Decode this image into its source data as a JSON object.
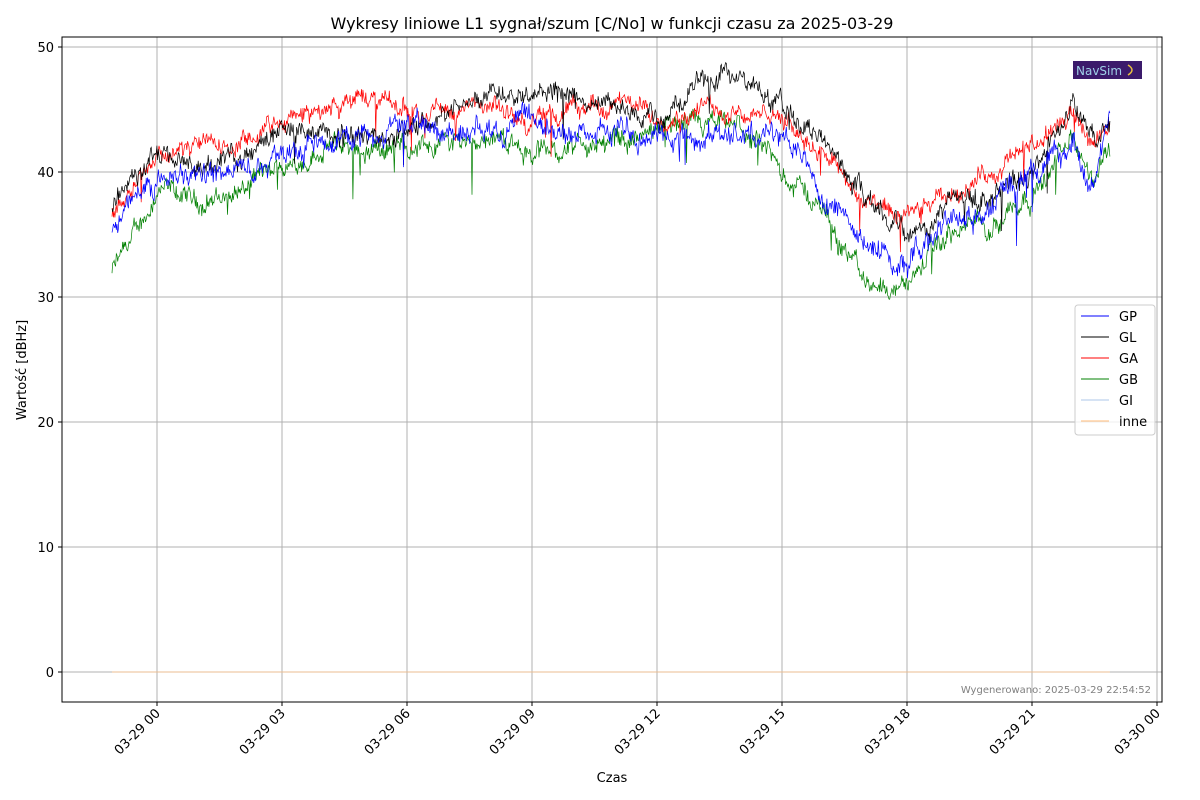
{
  "chart_data": {
    "type": "line",
    "title": "Wykresy liniowe L1 sygnał/szum [C/No] w funkcji czasu za 2025-03-29",
    "xlabel": "Czas",
    "ylabel": "Wartość [dBHz]",
    "x_unit": "hours since 2025-03-29 00:00",
    "xlim": [
      -2.28,
      24.12
    ],
    "ylim": [
      -2.4,
      50.8
    ],
    "grid": true,
    "legend_position": "center-right",
    "x_ticks": [
      0,
      3,
      6,
      9,
      12,
      15,
      18,
      21,
      24
    ],
    "x_tick_labels": [
      "03-29 00",
      "03-29 03",
      "03-29 06",
      "03-29 09",
      "03-29 12",
      "03-29 15",
      "03-29 18",
      "03-29 21",
      "03-30 00"
    ],
    "y_ticks": [
      0,
      10,
      20,
      30,
      40,
      50
    ],
    "y_tick_labels": [
      "0",
      "10",
      "20",
      "30",
      "40",
      "50"
    ],
    "x": [
      -1.08,
      -0.5,
      0,
      1,
      2,
      3,
      4,
      5,
      6,
      7,
      8,
      9,
      10,
      11,
      12,
      13,
      14,
      15,
      16,
      17,
      18,
      19,
      20,
      21,
      22,
      22.5,
      22.87
    ],
    "series": [
      {
        "name": "GP",
        "color": "#0000ff",
        "noise": 1.0,
        "values": [
          35,
          38,
          39.5,
          40,
          40,
          42,
          42.5,
          43.5,
          44,
          43,
          44,
          43.5,
          43,
          43.5,
          43,
          42.5,
          43.5,
          43,
          38.5,
          34,
          33,
          36,
          37,
          40,
          42,
          39,
          44
        ]
      },
      {
        "name": "GL",
        "color": "#000000",
        "noise": 0.9,
        "values": [
          37.5,
          40,
          41,
          40.5,
          41,
          43.5,
          43,
          42.5,
          43.5,
          45,
          46.5,
          47,
          46,
          45,
          44,
          47,
          47.5,
          45,
          43,
          38,
          35,
          38,
          38,
          40,
          45.5,
          42,
          44
        ]
      },
      {
        "name": "GA",
        "color": "#ff0000",
        "noise": 0.8,
        "values": [
          36.5,
          40,
          41.5,
          42,
          42,
          44,
          45,
          46,
          45,
          45,
          45,
          44,
          45,
          45.5,
          44.5,
          45,
          45,
          44,
          42,
          37.5,
          36,
          38,
          40,
          42,
          44.5,
          42,
          44
        ]
      },
      {
        "name": "GB",
        "color": "#008000",
        "noise": 0.9,
        "values": [
          32,
          35,
          38.5,
          37.5,
          38.5,
          40,
          42,
          42,
          42,
          42.5,
          43,
          41.5,
          42,
          42.5,
          43,
          43.5,
          43.5,
          40,
          37,
          31,
          31,
          35,
          36,
          38.5,
          42.5,
          39,
          42
        ]
      },
      {
        "name": "GI",
        "color": "#aec7e8",
        "noise": 0,
        "values": [
          0,
          0,
          0,
          0,
          0,
          0,
          0,
          0,
          0,
          0,
          0,
          0,
          0,
          0,
          0,
          0,
          0,
          0,
          0,
          0,
          0,
          0,
          0,
          0,
          0,
          0,
          0
        ]
      },
      {
        "name": "inne",
        "color": "#ffbb78",
        "noise": 0,
        "values": [
          0,
          0,
          0,
          0,
          0,
          0,
          0,
          0,
          0,
          0,
          0,
          0,
          0,
          0,
          0,
          0,
          0,
          0,
          0,
          0,
          0,
          0,
          0,
          0,
          0,
          0,
          0
        ]
      }
    ],
    "annotations": [
      "Wygenerowano: 2025-03-29 22:54:52"
    ],
    "logo_text": "NavSim"
  }
}
